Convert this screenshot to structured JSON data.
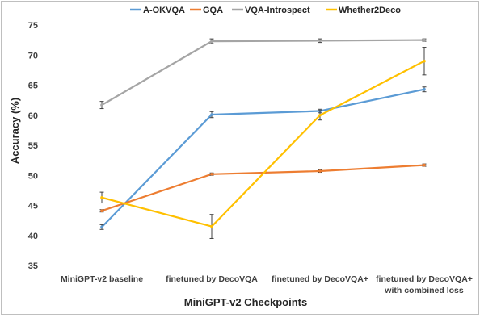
{
  "chart_data": {
    "type": "line",
    "title": "",
    "xlabel": "MiniGPT-v2 Checkpoints",
    "ylabel": "Accuracy (%)",
    "ylim": [
      35,
      75
    ],
    "yticks": [
      "35",
      "40",
      "45",
      "50",
      "55",
      "60",
      "65",
      "70",
      "75"
    ],
    "grid": false,
    "legend_position": "top",
    "categories": [
      [
        "MiniGPT-v2 baseline"
      ],
      [
        "finetuned by DecoVQA"
      ],
      [
        "finetuned by DecoVQA+"
      ],
      [
        "finetuned by DecoVQA+",
        "with combined loss"
      ]
    ],
    "series": [
      {
        "name": "A-OKVQA",
        "color": "#5b9bd5",
        "values": [
          41.4,
          60.1,
          60.7,
          64.3
        ],
        "errors": [
          0.4,
          0.5,
          0.3,
          0.4
        ]
      },
      {
        "name": "GQA",
        "color": "#ed7d31",
        "values": [
          44.1,
          50.2,
          50.7,
          51.7
        ],
        "errors": [
          0.2,
          0.2,
          0.2,
          0.2
        ]
      },
      {
        "name": "VQA-Introspect",
        "color": "#a5a5a5",
        "values": [
          61.7,
          72.3,
          72.4,
          72.5
        ],
        "errors": [
          0.6,
          0.4,
          0.3,
          0.2
        ]
      },
      {
        "name": "Whether2Deco",
        "color": "#ffc000",
        "values": [
          46.3,
          41.5,
          60.0,
          69.0
        ],
        "errors": [
          0.9,
          2.0,
          0.8,
          2.3
        ]
      }
    ]
  }
}
